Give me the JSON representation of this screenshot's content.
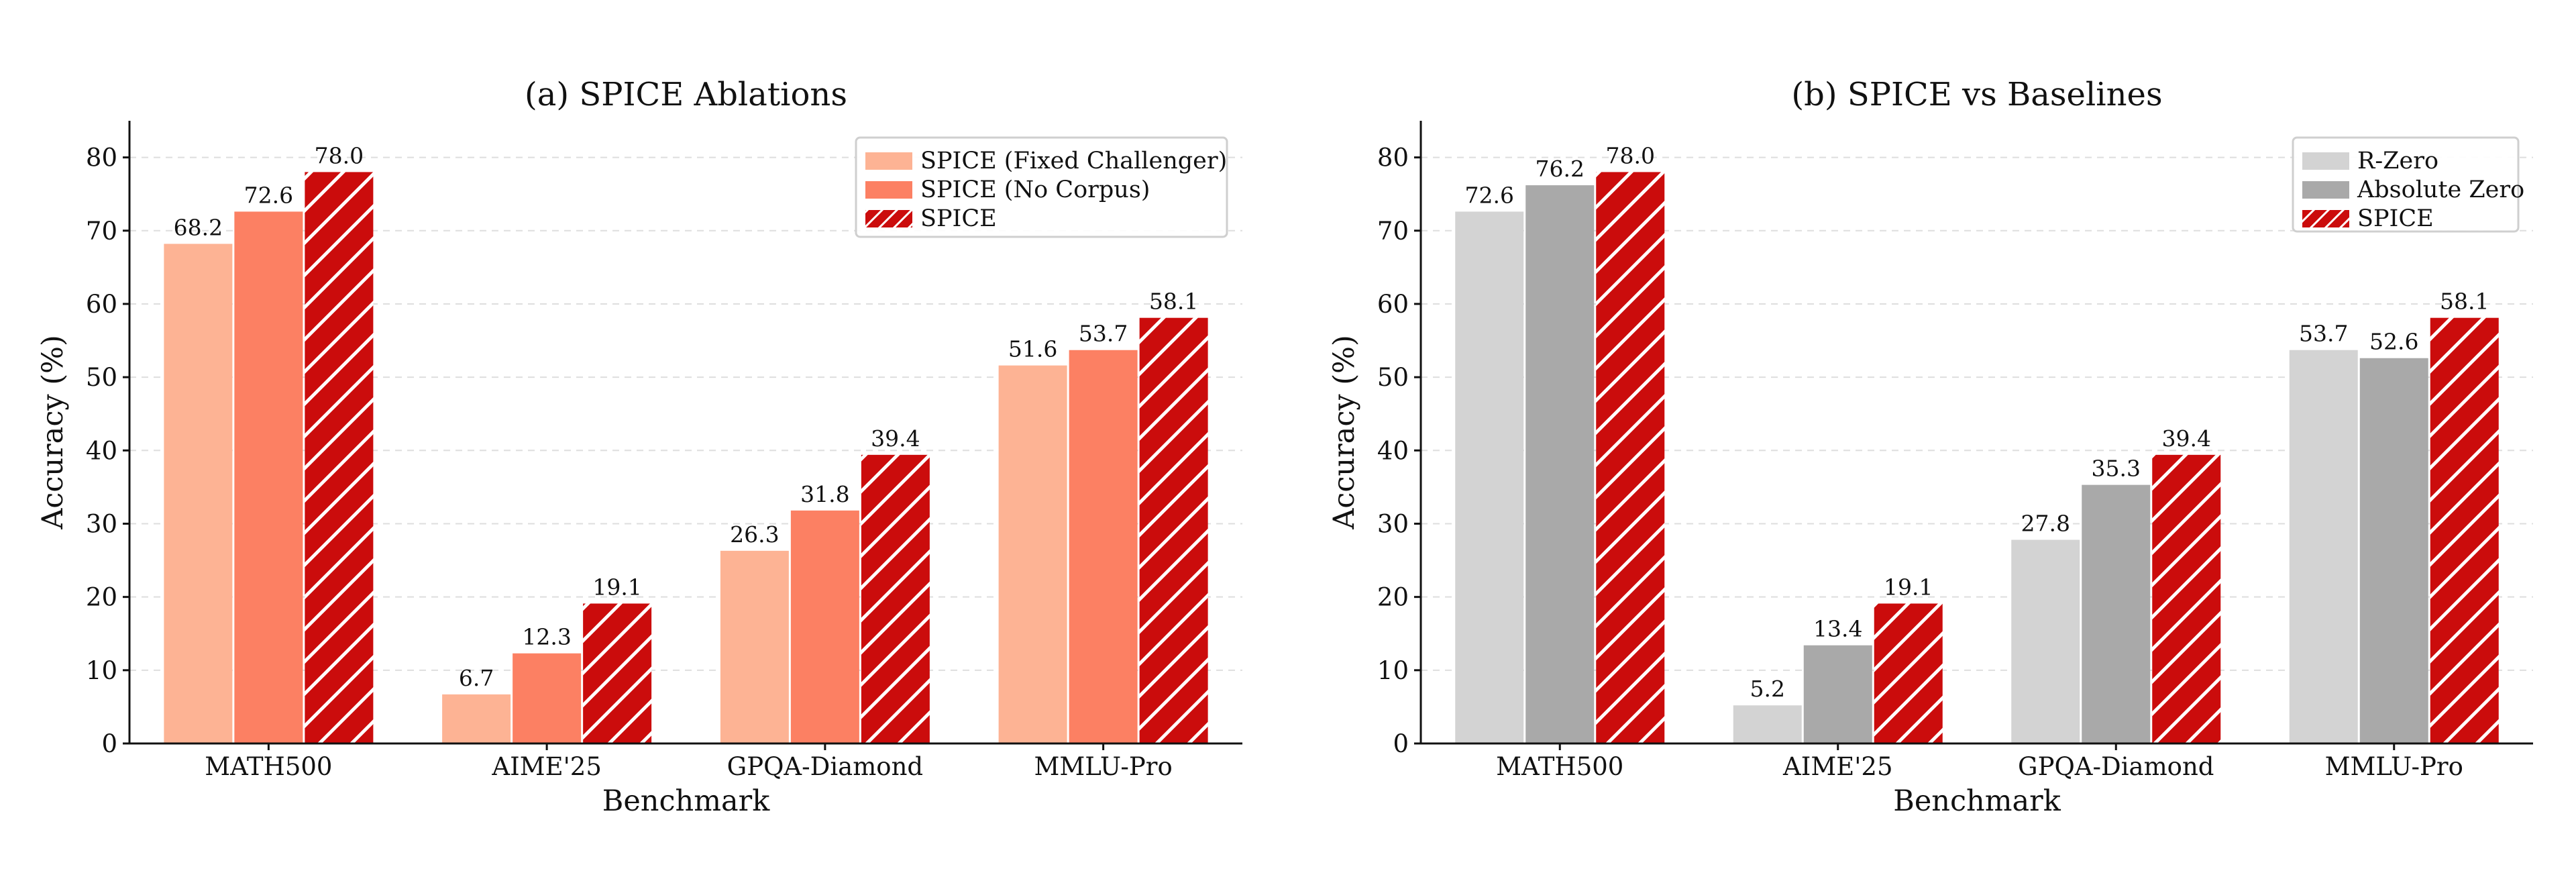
{
  "chart_data": [
    {
      "type": "bar",
      "title": "(a) SPICE Ablations",
      "xlabel": "Benchmark",
      "ylabel": "Accuracy (%)",
      "ylim": [
        0,
        85
      ],
      "yticks": [
        0,
        10,
        20,
        30,
        40,
        50,
        60,
        70,
        80
      ],
      "grid": "horizontal dashed",
      "legend_position": "top-right",
      "categories": [
        "MATH500",
        "AIME'25",
        "GPQA-Diamond",
        "MMLU-Pro"
      ],
      "series": [
        {
          "name": "SPICE (Fixed Challenger)",
          "values": [
            68.2,
            6.7,
            26.3,
            51.6
          ],
          "labels": [
            "68.2",
            "6.7",
            "26.3",
            "51.6"
          ],
          "color": "#fdb394",
          "hatch": false
        },
        {
          "name": "SPICE (No Corpus)",
          "values": [
            72.6,
            12.3,
            31.8,
            53.7
          ],
          "labels": [
            "72.6",
            "12.3",
            "31.8",
            "53.7"
          ],
          "color": "#fc8063",
          "hatch": false
        },
        {
          "name": "SPICE",
          "values": [
            78.0,
            19.1,
            39.4,
            58.1
          ],
          "labels": [
            "78.0",
            "19.1",
            "39.4",
            "58.1"
          ],
          "color": "#cb0c0c",
          "hatch": true
        }
      ]
    },
    {
      "type": "bar",
      "title": "(b) SPICE vs Baselines",
      "xlabel": "Benchmark",
      "ylabel": "Accuracy (%)",
      "ylim": [
        0,
        85
      ],
      "yticks": [
        0,
        10,
        20,
        30,
        40,
        50,
        60,
        70,
        80
      ],
      "grid": "horizontal dashed",
      "legend_position": "top-right",
      "categories": [
        "MATH500",
        "AIME'25",
        "GPQA-Diamond",
        "MMLU-Pro"
      ],
      "series": [
        {
          "name": "R-Zero",
          "values": [
            72.6,
            5.2,
            27.8,
            53.7
          ],
          "labels": [
            "72.6",
            "5.2",
            "27.8",
            "53.7"
          ],
          "color": "#d3d3d3",
          "hatch": false
        },
        {
          "name": "Absolute Zero",
          "values": [
            76.2,
            13.4,
            35.3,
            52.6
          ],
          "labels": [
            "76.2",
            "13.4",
            "35.3",
            "52.6"
          ],
          "color": "#a9a9a9",
          "hatch": false
        },
        {
          "name": "SPICE",
          "values": [
            78.0,
            19.1,
            39.4,
            58.1
          ],
          "labels": [
            "78.0",
            "19.1",
            "39.4",
            "58.1"
          ],
          "color": "#cb0c0c",
          "hatch": true
        }
      ]
    }
  ]
}
